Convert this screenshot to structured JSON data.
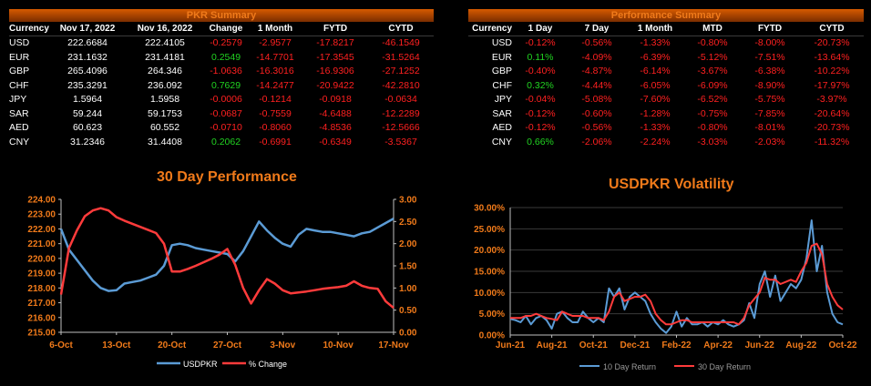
{
  "pkr_summary": {
    "title": "PKR Summary",
    "columns": [
      "Currency",
      "Nov 17, 2022",
      "Nov 16, 2022",
      "Change",
      "1 Month",
      "FYTD",
      "CYTD"
    ],
    "rows": [
      [
        "USD",
        "222.6684",
        "222.4105",
        "-0.2579",
        "-2.9577",
        "-17.8217",
        "-46.1549"
      ],
      [
        "EUR",
        "231.1632",
        "231.4181",
        "0.2549",
        "-14.7701",
        "-17.3545",
        "-31.5264"
      ],
      [
        "GBP",
        "265.4096",
        "264.346",
        "-1.0636",
        "-16.3016",
        "-16.9306",
        "-27.1252"
      ],
      [
        "CHF",
        "235.3291",
        "236.092",
        "0.7629",
        "-14.2477",
        "-20.9422",
        "-42.2810"
      ],
      [
        "JPY",
        "1.5964",
        "1.5958",
        "-0.0006",
        "-0.1214",
        "-0.0918",
        "-0.0634"
      ],
      [
        "SAR",
        "59.244",
        "59.1753",
        "-0.0687",
        "-0.7559",
        "-4.6488",
        "-12.2289"
      ],
      [
        "AED",
        "60.623",
        "60.552",
        "-0.0710",
        "-0.8060",
        "-4.8536",
        "-12.5666"
      ],
      [
        "CNY",
        "31.2346",
        "31.4408",
        "0.2062",
        "-0.6991",
        "-0.6349",
        "-3.5367"
      ]
    ]
  },
  "performance_summary": {
    "title": "Performance Summary",
    "columns": [
      "Currency",
      "1 Day",
      "7 Day",
      "1 Month",
      "MTD",
      "FYTD",
      "CYTD"
    ],
    "rows": [
      [
        "USD",
        "-0.12%",
        "-0.56%",
        "-1.33%",
        "-0.80%",
        "-8.00%",
        "-20.73%"
      ],
      [
        "EUR",
        "0.11%",
        "-4.09%",
        "-6.39%",
        "-5.12%",
        "-7.51%",
        "-13.64%"
      ],
      [
        "GBP",
        "-0.40%",
        "-4.87%",
        "-6.14%",
        "-3.67%",
        "-6.38%",
        "-10.22%"
      ],
      [
        "CHF",
        "0.32%",
        "-4.44%",
        "-6.05%",
        "-6.09%",
        "-8.90%",
        "-17.97%"
      ],
      [
        "JPY",
        "-0.04%",
        "-5.08%",
        "-7.60%",
        "-6.52%",
        "-5.75%",
        "-3.97%"
      ],
      [
        "SAR",
        "-0.12%",
        "-0.60%",
        "-1.28%",
        "-0.75%",
        "-7.85%",
        "-20.64%"
      ],
      [
        "AED",
        "-0.12%",
        "-0.56%",
        "-1.33%",
        "-0.80%",
        "-8.01%",
        "-20.73%"
      ],
      [
        "CNY",
        "0.66%",
        "-2.06%",
        "-2.24%",
        "-3.03%",
        "-2.03%",
        "-11.32%"
      ]
    ]
  },
  "colors": {
    "accent": "#f07a1a",
    "positive": "#21d321",
    "negative": "#ff2020",
    "series_blue": "#5b9bd5",
    "series_red": "#ff3b3b",
    "grid": "#3a3a3a"
  },
  "chart_data": [
    {
      "type": "line",
      "title": "30 Day Performance",
      "x_tick_labels": [
        "6-Oct",
        "13-Oct",
        "20-Oct",
        "27-Oct",
        "3-Nov",
        "10-Nov",
        "17-Nov"
      ],
      "x_index_range": [
        0,
        42
      ],
      "y_left": {
        "ticks": [
          "215.00",
          "216.00",
          "217.00",
          "218.00",
          "219.00",
          "220.00",
          "221.00",
          "222.00",
          "223.00",
          "224.00"
        ],
        "ylim": [
          215,
          224
        ]
      },
      "y_right": {
        "ticks": [
          "0.00",
          "0.50",
          "1.00",
          "1.50",
          "2.00",
          "2.50",
          "3.00"
        ],
        "ylim": [
          0,
          3
        ]
      },
      "grid": false,
      "legend_position": "bottom",
      "series": [
        {
          "name": "USDPKR",
          "axis": "left",
          "color": "#5b9bd5",
          "x": [
            0,
            1,
            2,
            3,
            4,
            5,
            6,
            7,
            8,
            9,
            10,
            11,
            12,
            13,
            14,
            15,
            16,
            17,
            18,
            19,
            20,
            21,
            22,
            23,
            24,
            25,
            26,
            27,
            28,
            29,
            30,
            31,
            32,
            33,
            34,
            35,
            36,
            37,
            38,
            39,
            40,
            41,
            42
          ],
          "y": [
            222.0,
            220.6,
            219.9,
            219.2,
            218.5,
            218.0,
            217.8,
            217.85,
            218.3,
            218.4,
            218.5,
            218.7,
            218.9,
            219.5,
            220.9,
            221.0,
            220.9,
            220.7,
            220.6,
            220.5,
            220.4,
            220.3,
            219.8,
            220.5,
            221.5,
            222.5,
            221.9,
            221.4,
            221.0,
            220.8,
            221.6,
            222.0,
            221.9,
            221.8,
            221.8,
            221.7,
            221.6,
            221.5,
            221.7,
            221.8,
            222.1,
            222.4,
            222.7
          ]
        },
        {
          "name": "% Change",
          "axis": "right",
          "color": "#ff3b3b",
          "x": [
            0,
            1,
            2,
            3,
            4,
            5,
            6,
            7,
            8,
            9,
            10,
            11,
            12,
            13,
            14,
            15,
            16,
            17,
            18,
            19,
            20,
            21,
            22,
            23,
            24,
            25,
            26,
            27,
            28,
            29,
            30,
            31,
            32,
            33,
            34,
            35,
            36,
            37,
            38,
            39,
            40,
            41,
            42
          ],
          "y": [
            0.85,
            1.9,
            2.3,
            2.62,
            2.75,
            2.8,
            2.75,
            2.6,
            2.52,
            2.45,
            2.38,
            2.31,
            2.24,
            2.0,
            1.37,
            1.37,
            1.43,
            1.5,
            1.58,
            1.66,
            1.75,
            1.88,
            1.52,
            1.0,
            0.65,
            0.95,
            1.2,
            1.1,
            0.95,
            0.88,
            0.9,
            0.92,
            0.95,
            0.98,
            1.0,
            1.02,
            1.05,
            1.15,
            1.05,
            1.0,
            0.98,
            0.7,
            0.55
          ]
        }
      ]
    },
    {
      "type": "line",
      "title": "USDPKR Volatility",
      "x_tick_labels": [
        "Jun-21",
        "Aug-21",
        "Oct-21",
        "Dec-21",
        "Feb-22",
        "Apr-22",
        "Jun-22",
        "Aug-22",
        "Oct-22"
      ],
      "x_index_range": [
        0,
        32
      ],
      "y_ticks": [
        "0.00%",
        "5.00%",
        "10.00%",
        "15.00%",
        "20.00%",
        "25.00%",
        "30.00%"
      ],
      "ylim": [
        0,
        30
      ],
      "grid": true,
      "legend_position": "bottom",
      "series": [
        {
          "name": "10 Day Return",
          "color": "#5b9bd5",
          "x": [
            0,
            0.5,
            1,
            1.5,
            2,
            2.5,
            3,
            3.5,
            4,
            4.5,
            5,
            5.5,
            6,
            6.5,
            7,
            7.5,
            8,
            8.5,
            9,
            9.5,
            10,
            10.5,
            11,
            11.5,
            12,
            12.5,
            13,
            13.5,
            14,
            14.5,
            15,
            15.5,
            16,
            16.5,
            17,
            17.5,
            18,
            18.5,
            19,
            19.5,
            20,
            20.5,
            21,
            21.5,
            22,
            22.5,
            23,
            23.5,
            24,
            24.5,
            25,
            25.5,
            26,
            26.5,
            27,
            27.5,
            28,
            28.5,
            29,
            29.5,
            30,
            30.5,
            31,
            31.5,
            32
          ],
          "y": [
            3.8,
            3.5,
            3.0,
            4.5,
            2.5,
            4.0,
            4.5,
            3.5,
            1.5,
            5.0,
            5.5,
            4.0,
            3.0,
            3.0,
            5.5,
            4.0,
            3.0,
            4.0,
            3.0,
            11.0,
            9.0,
            11.0,
            6.0,
            9.0,
            10.0,
            9.0,
            8.0,
            5.0,
            3.0,
            1.5,
            0.5,
            2.0,
            5.5,
            2.0,
            4.0,
            2.5,
            2.5,
            3.0,
            2.0,
            3.0,
            2.5,
            3.5,
            2.5,
            2.0,
            2.5,
            3.5,
            7.5,
            4.0,
            12.0,
            15.0,
            9.0,
            14.0,
            8.0,
            10.0,
            12.0,
            11.0,
            13.0,
            18.0,
            27.0,
            15.0,
            21.0,
            10.0,
            5.0,
            3.0,
            2.5
          ]
        },
        {
          "name": "30 Day Return",
          "color": "#ff3b3b",
          "x": [
            0,
            0.5,
            1,
            1.5,
            2,
            2.5,
            3,
            3.5,
            4,
            4.5,
            5,
            5.5,
            6,
            6.5,
            7,
            7.5,
            8,
            8.5,
            9,
            9.5,
            10,
            10.5,
            11,
            11.5,
            12,
            12.5,
            13,
            13.5,
            14,
            14.5,
            15,
            15.5,
            16,
            16.5,
            17,
            17.5,
            18,
            18.5,
            19,
            19.5,
            20,
            20.5,
            21,
            21.5,
            22,
            22.5,
            23,
            23.5,
            24,
            24.5,
            25,
            25.5,
            26,
            26.5,
            27,
            27.5,
            28,
            28.5,
            29,
            29.5,
            30,
            30.5,
            31,
            31.5,
            32
          ],
          "y": [
            4.0,
            4.0,
            4.0,
            4.5,
            4.5,
            5.0,
            4.5,
            4.0,
            3.8,
            3.5,
            5.5,
            5.0,
            4.5,
            4.5,
            4.5,
            4.0,
            4.0,
            4.0,
            3.5,
            5.5,
            9.0,
            10.0,
            8.0,
            8.5,
            9.0,
            9.0,
            9.5,
            8.0,
            5.0,
            3.5,
            2.5,
            2.5,
            3.0,
            3.5,
            3.5,
            3.0,
            3.0,
            3.0,
            3.0,
            3.0,
            3.0,
            3.0,
            3.0,
            3.0,
            2.5,
            4.0,
            7.0,
            8.5,
            10.0,
            13.5,
            13.0,
            13.0,
            12.0,
            12.5,
            13.0,
            12.5,
            15.0,
            17.0,
            21.0,
            21.5,
            19.0,
            12.0,
            9.0,
            7.0,
            6.0
          ]
        }
      ]
    }
  ]
}
